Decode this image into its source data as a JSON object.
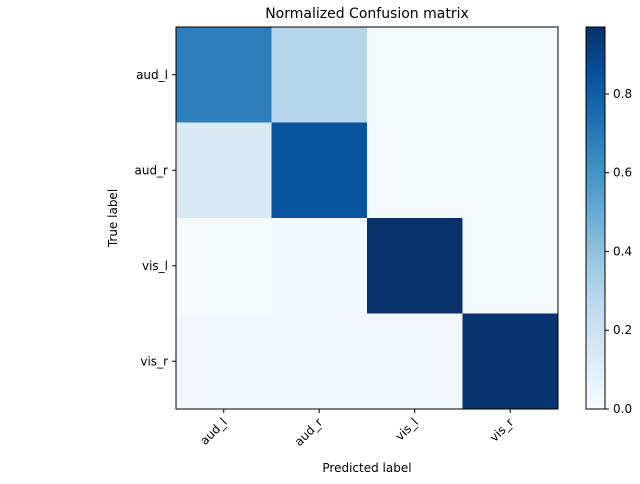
{
  "chart_data": {
    "type": "heatmap",
    "title": "Normalized Confusion matrix",
    "xlabel": "Predicted label",
    "ylabel": "True label",
    "x_categories": [
      "aud_l",
      "aud_r",
      "vis_l",
      "vis_r"
    ],
    "y_categories": [
      "aud_l",
      "aud_r",
      "vis_l",
      "vis_r"
    ],
    "values": [
      [
        0.68,
        0.29,
        0.01,
        0.01
      ],
      [
        0.14,
        0.84,
        0.01,
        0.01
      ],
      [
        0.01,
        0.02,
        0.97,
        0.01
      ],
      [
        0.02,
        0.02,
        0.02,
        0.96
      ]
    ],
    "colormap": "Blues",
    "colorbar": {
      "range": [
        0.0,
        0.97
      ],
      "ticks": [
        0.0,
        0.2,
        0.4,
        0.6,
        0.8
      ],
      "tick_labels": [
        "0.0",
        "0.2",
        "0.4",
        "0.6",
        "0.8"
      ]
    },
    "grid": false,
    "x_tick_rotation": 45
  }
}
